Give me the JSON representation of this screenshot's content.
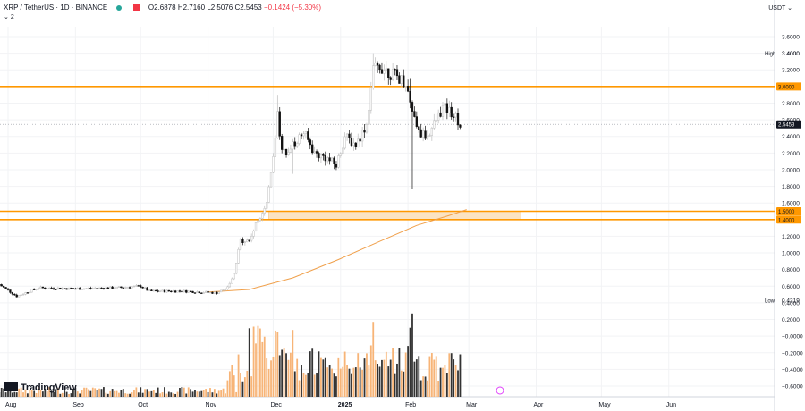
{
  "header": {
    "symbol": "XRP / TetherUS · 1D · BINANCE",
    "open": "O2.6878",
    "high": "H2.7160",
    "low": "L2.5076",
    "close": "C2.5453",
    "change": "−0.1424 (−5.30%)",
    "indicator_count": "2",
    "currency": "USDT"
  },
  "branding": {
    "name": "TradingView"
  },
  "colors": {
    "up": "#bdbdbd",
    "down": "#111111",
    "level": "#ff9800",
    "zone_fill": "#fbe3c2",
    "ma": "#f0a04b",
    "vol_up": "#f7b477",
    "vol_down": "#333333"
  },
  "chart_data": {
    "type": "candlestick",
    "x_ticks": [
      "Aug",
      "Sep",
      "Oct",
      "Nov",
      "Dec",
      "2025",
      "Feb",
      "Mar",
      "Apr",
      "May",
      "Jun"
    ],
    "y_ticks": [
      "3.6000",
      "3.4000",
      "3.2000",
      "3.0000",
      "2.8000",
      "2.6000",
      "2.4000",
      "2.2000",
      "2.0000",
      "1.8000",
      "1.6000",
      "1.4000",
      "1.2000",
      "1.0000",
      "0.8000",
      "0.6000",
      "0.4000",
      "0.2000",
      "−0.0000",
      "−0.2000",
      "−0.4000",
      "−0.6000"
    ],
    "ylim": [
      -0.65,
      3.85
    ],
    "current_price": "2.5453",
    "high_label": "High",
    "high_value": "3.4000",
    "low_label": "Low",
    "low_value": "0.4319",
    "levels": [
      {
        "label": "3.0000",
        "value": 3.0
      },
      {
        "label": "1.5000",
        "value": 1.5
      },
      {
        "label": "1.4000",
        "value": 1.4
      }
    ],
    "zone": {
      "from": 1.4,
      "to": 1.5,
      "start": "2024-11-29",
      "end": "2025-03-25"
    },
    "moving_average": [
      [
        "2024-11-01",
        0.53
      ],
      [
        "2024-11-20",
        0.56
      ],
      [
        "2024-12-10",
        0.7
      ],
      [
        "2024-12-31",
        0.92
      ],
      [
        "2025-01-20",
        1.15
      ],
      [
        "2025-02-05",
        1.33
      ],
      [
        "2025-02-20",
        1.45
      ],
      [
        "2025-02-28",
        1.52
      ]
    ],
    "price_path": [
      [
        "2024-07-28",
        0.62
      ],
      [
        "2024-08-05",
        0.48
      ],
      [
        "2024-08-15",
        0.58
      ],
      [
        "2024-09-01",
        0.57
      ],
      [
        "2024-09-20",
        0.58
      ],
      [
        "2024-10-01",
        0.6
      ],
      [
        "2024-10-05",
        0.54
      ],
      [
        "2024-10-20",
        0.54
      ],
      [
        "2024-11-05",
        0.52
      ],
      [
        "2024-11-10",
        0.58
      ],
      [
        "2024-11-13",
        0.75
      ],
      [
        "2024-11-16",
        1.15
      ],
      [
        "2024-11-20",
        1.15
      ],
      [
        "2024-11-24",
        1.4
      ],
      [
        "2024-11-28",
        1.6
      ],
      [
        "2024-12-02",
        2.4
      ],
      [
        "2024-12-03",
        2.7
      ],
      [
        "2024-12-05",
        2.2
      ],
      [
        "2024-12-10",
        2.3
      ],
      [
        "2024-12-15",
        2.45
      ],
      [
        "2024-12-20",
        2.2
      ],
      [
        "2024-12-25",
        2.15
      ],
      [
        "2024-12-30",
        2.05
      ],
      [
        "2025-01-03",
        2.4
      ],
      [
        "2025-01-08",
        2.3
      ],
      [
        "2025-01-13",
        2.55
      ],
      [
        "2025-01-16",
        3.2
      ],
      [
        "2025-01-19",
        3.25
      ],
      [
        "2025-01-25",
        3.15
      ],
      [
        "2025-01-31",
        3.05
      ],
      [
        "2025-02-03",
        2.7
      ],
      [
        "2025-02-06",
        2.45
      ],
      [
        "2025-02-10",
        2.4
      ],
      [
        "2025-02-14",
        2.6
      ],
      [
        "2025-02-17",
        2.75
      ],
      [
        "2025-02-21",
        2.7
      ],
      [
        "2025-02-24",
        2.6
      ],
      [
        "2025-02-25",
        2.5453
      ]
    ],
    "spikes": [
      [
        "2024-12-03",
        2.9
      ],
      [
        "2025-01-16",
        3.4
      ],
      [
        "2025-02-03",
        1.77
      ],
      [
        "2025-02-02",
        3.1
      ],
      [
        "2024-12-10",
        1.95
      ]
    ]
  }
}
